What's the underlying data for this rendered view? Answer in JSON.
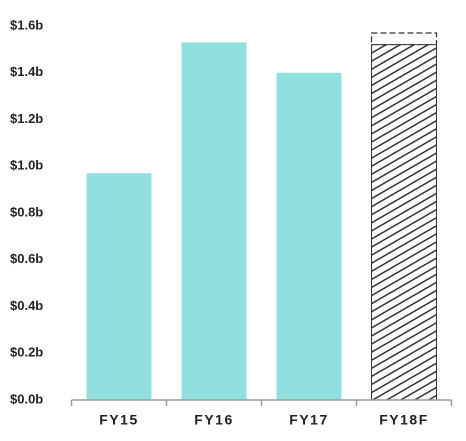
{
  "chart_data": {
    "type": "bar",
    "categories": [
      "FY15",
      "FY16",
      "FY17",
      "FY18F"
    ],
    "values": [
      0.97,
      1.53,
      1.4,
      1.52
    ],
    "range_high": [
      null,
      null,
      null,
      1.57
    ],
    "hatched": [
      false,
      false,
      false,
      true
    ],
    "color": "#8fe0de",
    "hatch_color": "#333333",
    "ylim": [
      0,
      1.6
    ],
    "yticks": [
      {
        "value": 0,
        "label": "$0.0b"
      },
      {
        "value": 0.2,
        "label": "$0.2b"
      },
      {
        "value": 0.4,
        "label": "$0.4b"
      },
      {
        "value": 0.6,
        "label": "$0.6b"
      },
      {
        "value": 0.8,
        "label": "$0.8b"
      },
      {
        "value": 1.0,
        "label": "$1.0b"
      },
      {
        "value": 1.2,
        "label": "$1.2b"
      },
      {
        "value": 1.4,
        "label": "$1.4b"
      },
      {
        "value": 1.6,
        "label": "$1.6b"
      }
    ],
    "grid": false
  }
}
